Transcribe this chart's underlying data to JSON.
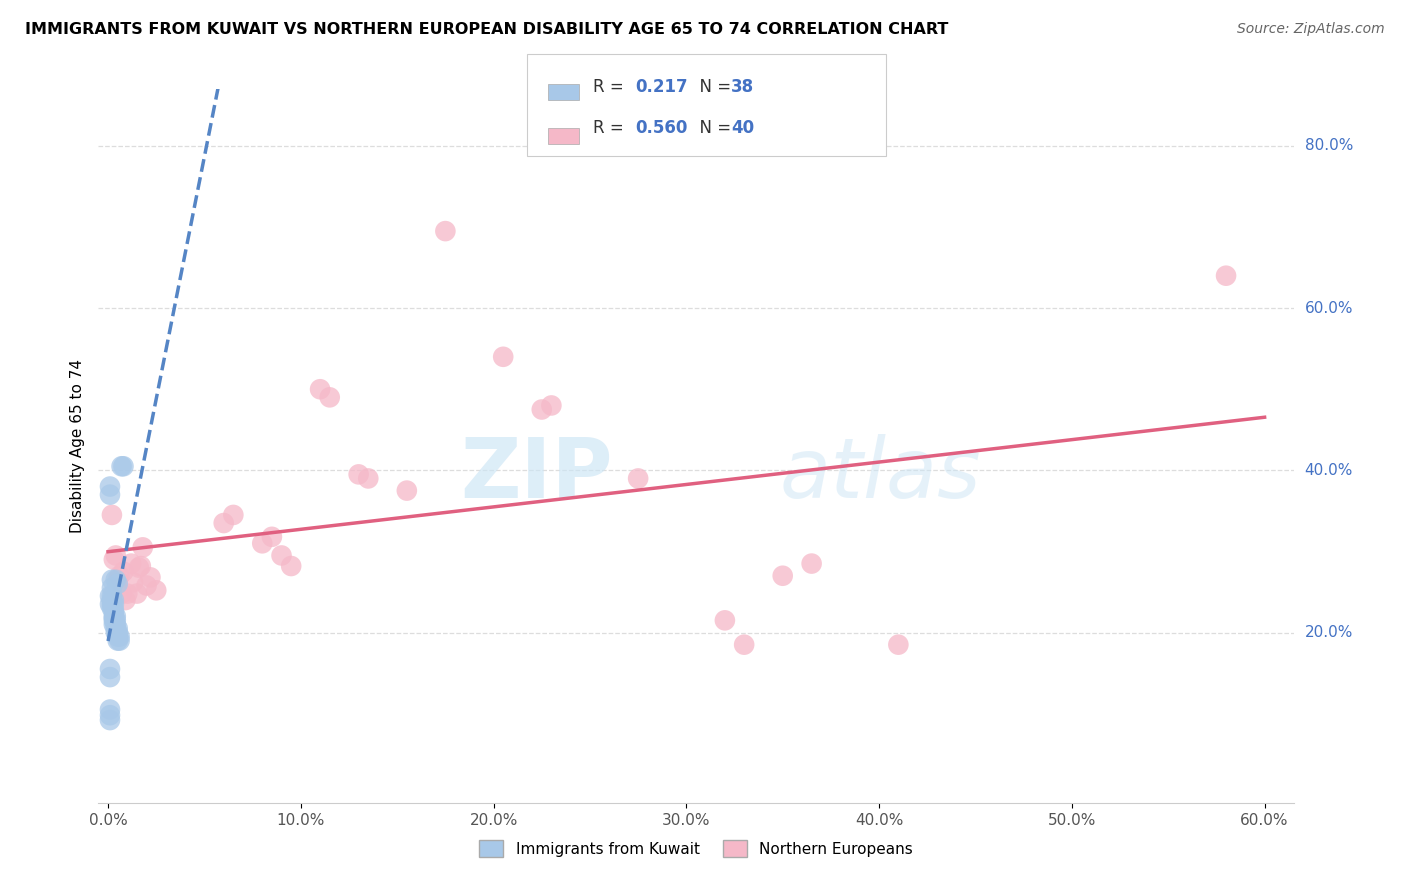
{
  "title": "IMMIGRANTS FROM KUWAIT VS NORTHERN EUROPEAN DISABILITY AGE 65 TO 74 CORRELATION CHART",
  "source": "Source: ZipAtlas.com",
  "ylabel": "Disability Age 65 to 74",
  "xlim": [
    0.0,
    0.6
  ],
  "ylim": [
    0.0,
    0.85
  ],
  "xtick_vals": [
    0.0,
    0.1,
    0.2,
    0.3,
    0.4,
    0.5,
    0.6
  ],
  "ytick_right_vals": [
    0.2,
    0.4,
    0.6,
    0.8
  ],
  "legend_bottom1": "Immigrants from Kuwait",
  "legend_bottom2": "Northern Europeans",
  "blue_scatter_color": "#a8c8e8",
  "pink_scatter_color": "#f5b8c8",
  "blue_line_color": "#5585c5",
  "pink_line_color": "#e06080",
  "grid_color": "#dddddd",
  "kuwait_points": [
    [
      0.001,
      0.245
    ],
    [
      0.001,
      0.235
    ],
    [
      0.002,
      0.265
    ],
    [
      0.002,
      0.255
    ],
    [
      0.002,
      0.245
    ],
    [
      0.002,
      0.24
    ],
    [
      0.002,
      0.235
    ],
    [
      0.002,
      0.23
    ],
    [
      0.003,
      0.24
    ],
    [
      0.003,
      0.235
    ],
    [
      0.003,
      0.228
    ],
    [
      0.003,
      0.225
    ],
    [
      0.003,
      0.22
    ],
    [
      0.003,
      0.218
    ],
    [
      0.003,
      0.215
    ],
    [
      0.003,
      0.21
    ],
    [
      0.004,
      0.22
    ],
    [
      0.004,
      0.215
    ],
    [
      0.004,
      0.21
    ],
    [
      0.004,
      0.205
    ],
    [
      0.004,
      0.2
    ],
    [
      0.005,
      0.205
    ],
    [
      0.005,
      0.2
    ],
    [
      0.005,
      0.195
    ],
    [
      0.005,
      0.19
    ],
    [
      0.006,
      0.195
    ],
    [
      0.006,
      0.19
    ],
    [
      0.001,
      0.155
    ],
    [
      0.001,
      0.145
    ],
    [
      0.007,
      0.405
    ],
    [
      0.008,
      0.405
    ],
    [
      0.001,
      0.105
    ],
    [
      0.001,
      0.098
    ],
    [
      0.001,
      0.092
    ],
    [
      0.001,
      0.38
    ],
    [
      0.001,
      0.37
    ],
    [
      0.004,
      0.265
    ],
    [
      0.005,
      0.26
    ]
  ],
  "northern_points": [
    [
      0.002,
      0.345
    ],
    [
      0.003,
      0.29
    ],
    [
      0.004,
      0.295
    ],
    [
      0.005,
      0.265
    ],
    [
      0.006,
      0.27
    ],
    [
      0.007,
      0.248
    ],
    [
      0.008,
      0.275
    ],
    [
      0.009,
      0.24
    ],
    [
      0.01,
      0.248
    ],
    [
      0.012,
      0.285
    ],
    [
      0.013,
      0.262
    ],
    [
      0.015,
      0.248
    ],
    [
      0.016,
      0.28
    ],
    [
      0.017,
      0.282
    ],
    [
      0.018,
      0.305
    ],
    [
      0.02,
      0.258
    ],
    [
      0.022,
      0.268
    ],
    [
      0.025,
      0.252
    ],
    [
      0.06,
      0.335
    ],
    [
      0.065,
      0.345
    ],
    [
      0.08,
      0.31
    ],
    [
      0.085,
      0.318
    ],
    [
      0.09,
      0.295
    ],
    [
      0.095,
      0.282
    ],
    [
      0.11,
      0.5
    ],
    [
      0.115,
      0.49
    ],
    [
      0.13,
      0.395
    ],
    [
      0.135,
      0.39
    ],
    [
      0.155,
      0.375
    ],
    [
      0.175,
      0.695
    ],
    [
      0.205,
      0.54
    ],
    [
      0.225,
      0.475
    ],
    [
      0.23,
      0.48
    ],
    [
      0.275,
      0.39
    ],
    [
      0.32,
      0.215
    ],
    [
      0.33,
      0.185
    ],
    [
      0.35,
      0.27
    ],
    [
      0.365,
      0.285
    ],
    [
      0.41,
      0.185
    ],
    [
      0.58,
      0.64
    ]
  ]
}
